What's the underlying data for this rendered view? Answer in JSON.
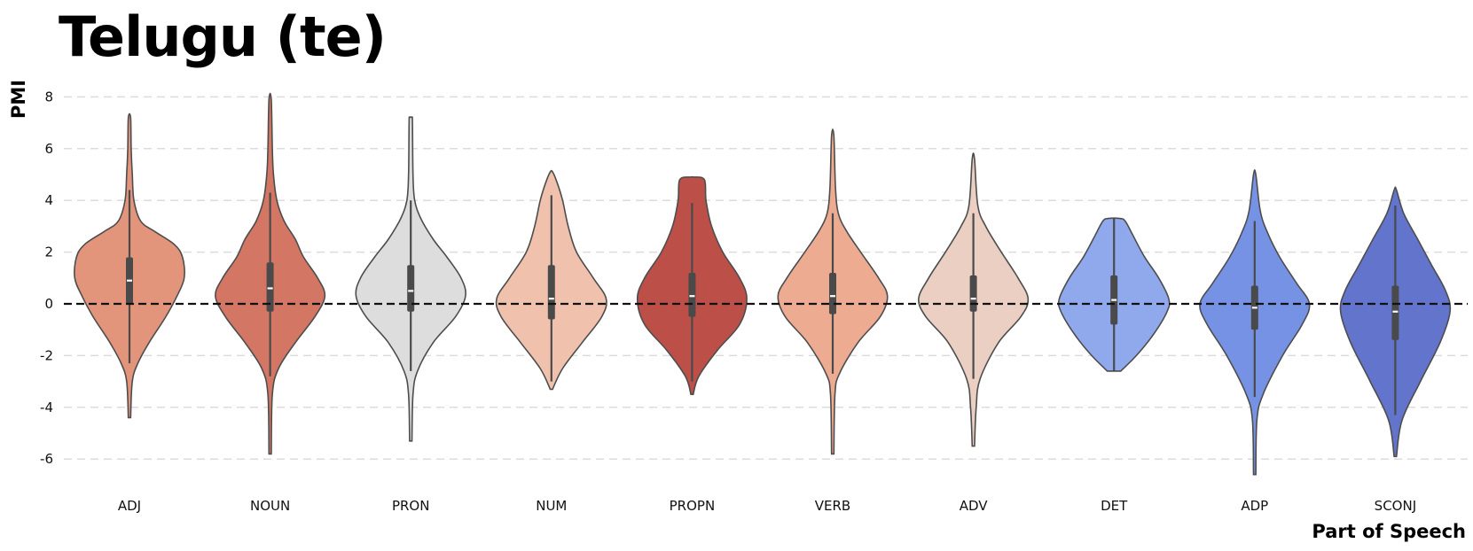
{
  "chart_data": {
    "type": "violin",
    "title": "Telugu (te)",
    "xlabel": "Part of Speech",
    "ylabel": "PMI",
    "ylim": [
      -7,
      8.5
    ],
    "yticks": [
      8,
      6,
      4,
      2,
      0,
      -2,
      -4,
      -6
    ],
    "grid": "horizontal dashed",
    "reference_line": 0,
    "categories": [
      "ADJ",
      "NOUN",
      "PRON",
      "NUM",
      "PROPN",
      "VERB",
      "ADV",
      "DET",
      "ADP",
      "SCONJ"
    ],
    "colors": [
      "#e3957c",
      "#d37663",
      "#dddddd",
      "#f0c2ad",
      "#bc5048",
      "#edab92",
      "#eacfc2",
      "#8fa9ec",
      "#7692e4",
      "#6274cc"
    ],
    "series": [
      {
        "name": "ADJ",
        "min": -4.4,
        "max": 7.2,
        "q1": 0.0,
        "median": 0.9,
        "q3": 1.8,
        "whisker_low": -2.3,
        "whisker_high": 4.4,
        "profile": [
          [
            -4.4,
            0.02
          ],
          [
            -3.0,
            0.05
          ],
          [
            -2.3,
            0.15
          ],
          [
            -1.5,
            0.35
          ],
          [
            -0.5,
            0.65
          ],
          [
            0.3,
            0.85
          ],
          [
            1.0,
            0.98
          ],
          [
            1.8,
            0.95
          ],
          [
            2.3,
            0.8
          ],
          [
            2.8,
            0.45
          ],
          [
            3.2,
            0.2
          ],
          [
            4.0,
            0.08
          ],
          [
            5.0,
            0.05
          ],
          [
            6.0,
            0.03
          ],
          [
            7.2,
            0.02
          ]
        ]
      },
      {
        "name": "NOUN",
        "min": -5.8,
        "max": 7.9,
        "q1": -0.3,
        "median": 0.6,
        "q3": 1.6,
        "whisker_low": -2.8,
        "whisker_high": 4.3,
        "profile": [
          [
            -5.8,
            0.02
          ],
          [
            -3.5,
            0.04
          ],
          [
            -2.5,
            0.15
          ],
          [
            -1.5,
            0.45
          ],
          [
            -0.5,
            0.8
          ],
          [
            0.3,
            0.98
          ],
          [
            1.0,
            0.85
          ],
          [
            1.8,
            0.6
          ],
          [
            2.5,
            0.45
          ],
          [
            3.2,
            0.25
          ],
          [
            4.0,
            0.12
          ],
          [
            5.0,
            0.06
          ],
          [
            6.0,
            0.04
          ],
          [
            7.9,
            0.02
          ]
        ]
      },
      {
        "name": "PRON",
        "min": -5.3,
        "max": 7.2,
        "q1": -0.3,
        "median": 0.5,
        "q3": 1.5,
        "whisker_low": -2.6,
        "whisker_high": 4.0,
        "profile": [
          [
            -5.3,
            0.02
          ],
          [
            -3.5,
            0.04
          ],
          [
            -2.6,
            0.12
          ],
          [
            -1.5,
            0.4
          ],
          [
            -0.5,
            0.8
          ],
          [
            0.3,
            0.98
          ],
          [
            1.0,
            0.9
          ],
          [
            1.8,
            0.65
          ],
          [
            2.5,
            0.4
          ],
          [
            3.3,
            0.18
          ],
          [
            4.0,
            0.07
          ],
          [
            5.0,
            0.04
          ],
          [
            7.0,
            0.03
          ],
          [
            7.2,
            0.02
          ]
        ]
      },
      {
        "name": "NUM",
        "min": -3.3,
        "max": 5.1,
        "q1": -0.6,
        "median": 0.2,
        "q3": 1.5,
        "whisker_low": -3.0,
        "whisker_high": 4.2,
        "profile": [
          [
            -3.3,
            0.02
          ],
          [
            -2.5,
            0.2
          ],
          [
            -1.5,
            0.55
          ],
          [
            -0.5,
            0.9
          ],
          [
            0.2,
            0.98
          ],
          [
            1.0,
            0.75
          ],
          [
            2.0,
            0.45
          ],
          [
            3.0,
            0.3
          ],
          [
            4.0,
            0.2
          ],
          [
            4.7,
            0.1
          ],
          [
            5.1,
            0.02
          ]
        ]
      },
      {
        "name": "PROPN",
        "min": -3.5,
        "max": 4.9,
        "q1": -0.5,
        "median": 0.3,
        "q3": 1.2,
        "whisker_low": -3.0,
        "whisker_high": 3.9,
        "profile": [
          [
            -3.5,
            0.02
          ],
          [
            -2.8,
            0.12
          ],
          [
            -1.8,
            0.45
          ],
          [
            -0.8,
            0.85
          ],
          [
            0.2,
            0.98
          ],
          [
            1.0,
            0.85
          ],
          [
            2.0,
            0.55
          ],
          [
            3.0,
            0.35
          ],
          [
            4.0,
            0.25
          ],
          [
            4.8,
            0.22
          ],
          [
            4.9,
            0.02
          ]
        ]
      },
      {
        "name": "VERB",
        "min": -5.8,
        "max": 6.5,
        "q1": -0.4,
        "median": 0.3,
        "q3": 1.2,
        "whisker_low": -2.7,
        "whisker_high": 3.5,
        "profile": [
          [
            -5.8,
            0.02
          ],
          [
            -3.5,
            0.04
          ],
          [
            -2.7,
            0.12
          ],
          [
            -1.5,
            0.45
          ],
          [
            -0.5,
            0.85
          ],
          [
            0.3,
            0.98
          ],
          [
            1.0,
            0.82
          ],
          [
            2.0,
            0.5
          ],
          [
            2.8,
            0.25
          ],
          [
            3.5,
            0.1
          ],
          [
            4.5,
            0.05
          ],
          [
            6.5,
            0.02
          ]
        ]
      },
      {
        "name": "ADV",
        "min": -5.5,
        "max": 5.6,
        "q1": -0.3,
        "median": 0.2,
        "q3": 1.1,
        "whisker_low": -2.9,
        "whisker_high": 3.5,
        "profile": [
          [
            -5.5,
            0.02
          ],
          [
            -4.0,
            0.05
          ],
          [
            -2.9,
            0.12
          ],
          [
            -1.5,
            0.45
          ],
          [
            -0.5,
            0.85
          ],
          [
            0.2,
            0.98
          ],
          [
            1.0,
            0.8
          ],
          [
            2.0,
            0.5
          ],
          [
            3.0,
            0.22
          ],
          [
            3.8,
            0.08
          ],
          [
            5.6,
            0.02
          ]
        ]
      },
      {
        "name": "DET",
        "min": -2.6,
        "max": 3.3,
        "q1": -0.8,
        "median": 0.15,
        "q3": 1.1,
        "whisker_low": -2.6,
        "whisker_high": 3.3,
        "profile": [
          [
            -2.6,
            0.12
          ],
          [
            -2.0,
            0.4
          ],
          [
            -1.2,
            0.7
          ],
          [
            -0.3,
            0.95
          ],
          [
            0.2,
            0.98
          ],
          [
            1.0,
            0.8
          ],
          [
            1.8,
            0.55
          ],
          [
            2.6,
            0.35
          ],
          [
            3.2,
            0.2
          ],
          [
            3.3,
            0.1
          ]
        ]
      },
      {
        "name": "ADP",
        "min": -6.6,
        "max": 5.0,
        "q1": -1.0,
        "median": -0.15,
        "q3": 0.7,
        "whisker_low": -3.6,
        "whisker_high": 3.2,
        "profile": [
          [
            -6.6,
            0.02
          ],
          [
            -4.5,
            0.04
          ],
          [
            -3.5,
            0.15
          ],
          [
            -2.0,
            0.5
          ],
          [
            -0.8,
            0.85
          ],
          [
            0.0,
            0.98
          ],
          [
            0.8,
            0.75
          ],
          [
            1.8,
            0.45
          ],
          [
            2.8,
            0.22
          ],
          [
            3.6,
            0.1
          ],
          [
            5.0,
            0.02
          ]
        ]
      },
      {
        "name": "SCONJ",
        "min": -5.9,
        "max": 4.4,
        "q1": -1.4,
        "median": -0.3,
        "q3": 0.7,
        "whisker_low": -4.3,
        "whisker_high": 3.8,
        "profile": [
          [
            -5.9,
            0.02
          ],
          [
            -4.5,
            0.12
          ],
          [
            -3.0,
            0.45
          ],
          [
            -1.5,
            0.8
          ],
          [
            -0.3,
            0.98
          ],
          [
            0.5,
            0.9
          ],
          [
            1.5,
            0.65
          ],
          [
            2.5,
            0.4
          ],
          [
            3.5,
            0.15
          ],
          [
            4.4,
            0.02
          ]
        ]
      }
    ]
  }
}
